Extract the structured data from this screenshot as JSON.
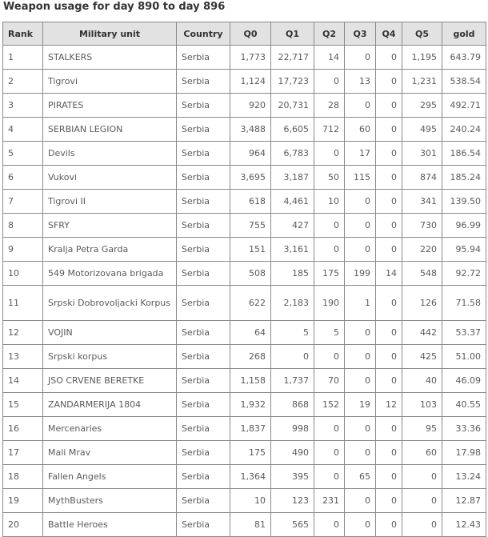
{
  "title": "Weapon usage for day 890 to day 896",
  "columns": [
    "Rank",
    "Military unit",
    "Country",
    "Q0",
    "Q1",
    "Q2",
    "Q3",
    "Q4",
    "Q5",
    "gold"
  ],
  "rows": [
    [
      "1",
      "STALKERS",
      "Serbia",
      "1,773",
      "22,717",
      "14",
      "0",
      "0",
      "1,195",
      "643.79"
    ],
    [
      "2",
      "Tigrovi",
      "Serbia",
      "1,124",
      "17,723",
      "0",
      "13",
      "0",
      "1,231",
      "538.54"
    ],
    [
      "3",
      "PIRATES",
      "Serbia",
      "920",
      "20,731",
      "28",
      "0",
      "0",
      "295",
      "492.71"
    ],
    [
      "4",
      "SERBIAN LEGION",
      "Serbia",
      "3,488",
      "6,605",
      "712",
      "60",
      "0",
      "495",
      "240.24"
    ],
    [
      "5",
      "Devils",
      "Serbia",
      "964",
      "6,783",
      "0",
      "17",
      "0",
      "301",
      "186.54"
    ],
    [
      "6",
      "Vukovi",
      "Serbia",
      "3,695",
      "3,187",
      "50",
      "115",
      "0",
      "874",
      "185.24"
    ],
    [
      "7",
      "Tigrovi II",
      "Serbia",
      "618",
      "4,461",
      "10",
      "0",
      "0",
      "341",
      "139.50"
    ],
    [
      "8",
      "SFRY",
      "Serbia",
      "755",
      "427",
      "0",
      "0",
      "0",
      "730",
      "96.99"
    ],
    [
      "9",
      "Kralja Petra Garda",
      "Serbia",
      "151",
      "3,161",
      "0",
      "0",
      "0",
      "220",
      "95.94"
    ],
    [
      "10",
      "549 Motorizovana brigada",
      "Serbia",
      "508",
      "185",
      "175",
      "199",
      "14",
      "548",
      "92.72"
    ],
    [
      "11",
      "Srpski Dobrovoljacki Korpus",
      "Serbia",
      "622",
      "2,183",
      "190",
      "1",
      "0",
      "126",
      "71.58"
    ],
    [
      "12",
      "VOJIN",
      "Serbia",
      "64",
      "5",
      "5",
      "0",
      "0",
      "442",
      "53.37"
    ],
    [
      "13",
      "Srpski korpus",
      "Serbia",
      "268",
      "0",
      "0",
      "0",
      "0",
      "425",
      "51.00"
    ],
    [
      "14",
      "JSO CRVENE BERETKE",
      "Serbia",
      "1,158",
      "1,737",
      "70",
      "0",
      "0",
      "40",
      "46.09"
    ],
    [
      "15",
      "ZANDARMERIJA 1804",
      "Serbia",
      "1,932",
      "868",
      "152",
      "19",
      "12",
      "103",
      "40.55"
    ],
    [
      "16",
      "Mercenaries",
      "Serbia",
      "1,837",
      "998",
      "0",
      "0",
      "0",
      "95",
      "33.36"
    ],
    [
      "17",
      "Mali Mrav",
      "Serbia",
      "175",
      "490",
      "0",
      "0",
      "0",
      "60",
      "17.98"
    ],
    [
      "18",
      "Fallen Angels",
      "Serbia",
      "1,364",
      "395",
      "0",
      "65",
      "0",
      "0",
      "13.24"
    ],
    [
      "19",
      "MythBusters",
      "Serbia",
      "10",
      "123",
      "231",
      "0",
      "0",
      "0",
      "12.87"
    ],
    [
      "20",
      "Battle Heroes",
      "Serbia",
      "81",
      "565",
      "0",
      "0",
      "0",
      "0",
      "12.43"
    ]
  ]
}
